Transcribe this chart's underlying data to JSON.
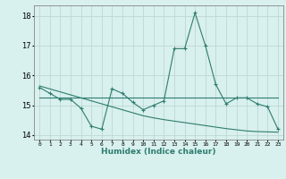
{
  "xlabel": "Humidex (Indice chaleur)",
  "x": [
    0,
    1,
    2,
    3,
    4,
    5,
    6,
    7,
    8,
    9,
    10,
    11,
    12,
    13,
    14,
    15,
    16,
    17,
    18,
    19,
    20,
    21,
    22,
    23
  ],
  "y_main": [
    15.6,
    15.4,
    15.2,
    15.2,
    14.9,
    14.3,
    14.2,
    15.55,
    15.4,
    15.1,
    14.85,
    15.0,
    15.15,
    16.9,
    16.9,
    18.1,
    17.0,
    15.7,
    15.05,
    15.25,
    15.25,
    15.05,
    14.95,
    14.2
  ],
  "y_flat": [
    15.25,
    15.25,
    15.25,
    15.25,
    15.25,
    15.25,
    15.25,
    15.25,
    15.25,
    15.25,
    15.25,
    15.25,
    15.25,
    15.25,
    15.25,
    15.25,
    15.25,
    15.25,
    15.25,
    15.25,
    15.25,
    15.25,
    15.25,
    15.25
  ],
  "y_trend": [
    15.65,
    15.55,
    15.45,
    15.35,
    15.25,
    15.15,
    15.05,
    14.95,
    14.85,
    14.75,
    14.65,
    14.58,
    14.52,
    14.47,
    14.42,
    14.37,
    14.32,
    14.27,
    14.22,
    14.18,
    14.14,
    14.12,
    14.11,
    14.1
  ],
  "line_color": "#2e7d6e",
  "bg_color": "#d8f0ee",
  "grid_color": "#c0d8d4",
  "ylim": [
    13.85,
    18.35
  ],
  "yticks": [
    14,
    15,
    16,
    17,
    18
  ]
}
